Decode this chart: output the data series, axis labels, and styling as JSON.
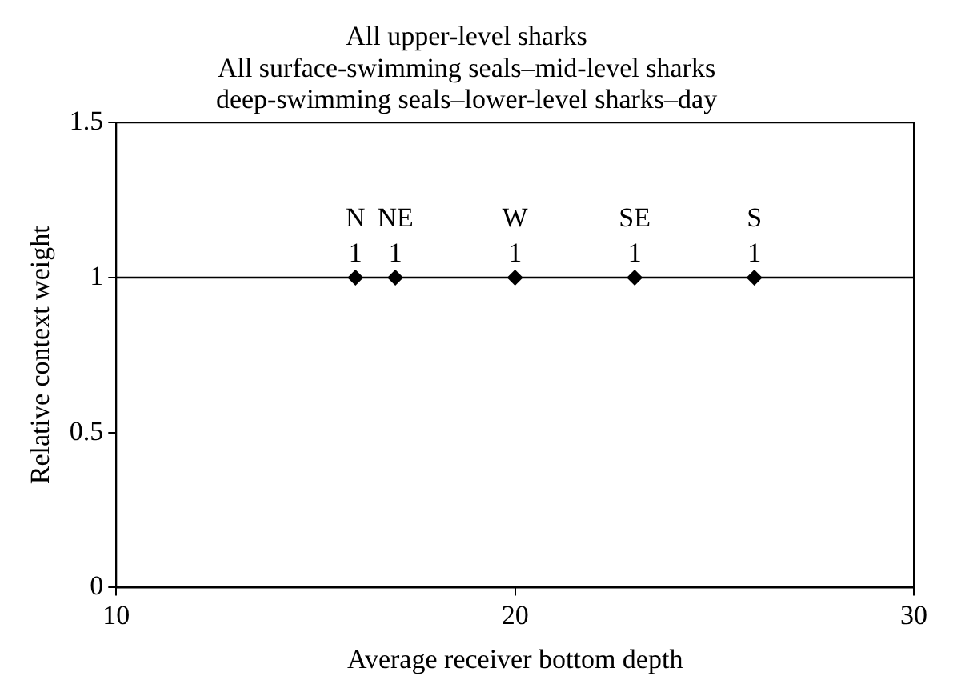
{
  "chart_data": {
    "type": "scatter",
    "title": "All upper-level sharks\nAll surface-swimming seals–mid-level sharks\ndeep-swimming seals–lower-level sharks–day",
    "xlabel": "Average receiver bottom depth",
    "ylabel": "Relative context weight",
    "x": [
      16,
      17,
      20,
      23,
      26
    ],
    "values": [
      1,
      1,
      1,
      1,
      1
    ],
    "color": "#000000",
    "marker": "diamond",
    "data_labels": true,
    "annotations": [
      {
        "text": "N",
        "x": 16,
        "y": 1
      },
      {
        "text": "NE",
        "x": 17,
        "y": 1
      },
      {
        "text": "W",
        "x": 20,
        "y": 1
      },
      {
        "text": "SE",
        "x": 23,
        "y": 1
      },
      {
        "text": "S",
        "x": 26,
        "y": 1
      }
    ],
    "ref_lines": [
      {
        "axis": "y",
        "value": 1,
        "color": "#000000"
      }
    ],
    "xlim": [
      10,
      30
    ],
    "xticks": [
      10,
      20,
      30
    ],
    "ylim": [
      0,
      1.5
    ],
    "yticks": [
      0,
      0.5,
      1,
      1.5
    ],
    "grid": false,
    "legend": false
  }
}
